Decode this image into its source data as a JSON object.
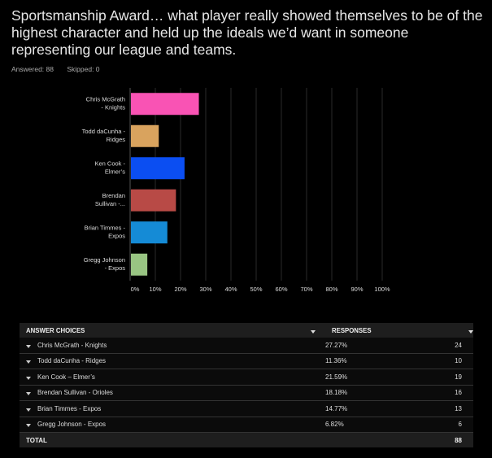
{
  "question": {
    "title": "Sportsmanship Award… what player really showed themselves to be of the highest character and held up the ideals we’d want in someone representing our league and teams.",
    "answered": "Answered: 88",
    "skipped": "Skipped: 0"
  },
  "chart_data": {
    "type": "bar",
    "orientation": "horizontal",
    "categories": [
      [
        "Chris McGrath",
        "- Knights"
      ],
      [
        "Todd daCunha -",
        "Ridges"
      ],
      [
        "Ken Cook -",
        "Elmer’s"
      ],
      [
        "Brendan",
        "Sullivan -..."
      ],
      [
        "Brian Timmes -",
        "Expos"
      ],
      [
        "Gregg Johnson",
        "- Expos"
      ]
    ],
    "values": [
      27.27,
      11.36,
      21.59,
      18.18,
      14.77,
      6.82
    ],
    "colors": [
      "#f953b4",
      "#d9a35e",
      "#0b4ef2",
      "#b84a46",
      "#158bd6",
      "#99c583"
    ],
    "xlim": [
      0,
      100
    ],
    "xticks": [
      "0%",
      "10%",
      "20%",
      "30%",
      "40%",
      "50%",
      "60%",
      "70%",
      "80%",
      "90%",
      "100%"
    ],
    "grid": true,
    "xlabel": "",
    "ylabel": ""
  },
  "table": {
    "headers": [
      "ANSWER CHOICES",
      "RESPONSES"
    ],
    "rows": [
      {
        "choice": "Chris McGrath - Knights",
        "pct": "27.27%",
        "count": "24"
      },
      {
        "choice": "Todd daCunha - Ridges",
        "pct": "11.36%",
        "count": "10"
      },
      {
        "choice": "Ken Cook – Elmer’s",
        "pct": "21.59%",
        "count": "19"
      },
      {
        "choice": "Brendan Sullivan - Orioles",
        "pct": "18.18%",
        "count": "16"
      },
      {
        "choice": "Brian Timmes - Expos",
        "pct": "14.77%",
        "count": "13"
      },
      {
        "choice": "Gregg Johnson - Expos",
        "pct": "6.82%",
        "count": "6"
      }
    ],
    "total_label": "TOTAL",
    "total_count": "88"
  }
}
